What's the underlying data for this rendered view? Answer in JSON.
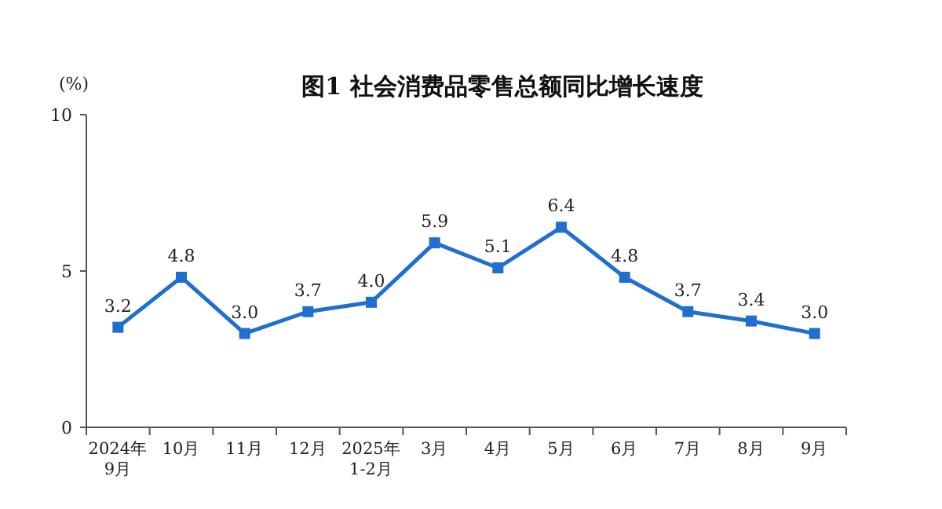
{
  "chart_data": {
    "type": "line",
    "title": "图1  社会消费品零售总额同比增长速度",
    "ylabel": "(%)",
    "categories": [
      "2024年\n9月",
      "10月",
      "11月",
      "12月",
      "2025年\n1-2月",
      "3月",
      "4月",
      "5月",
      "6月",
      "7月",
      "8月",
      "9月"
    ],
    "series": [
      {
        "color": "#1f6fd0",
        "values": [
          3.2,
          4.8,
          3.0,
          3.7,
          4.0,
          5.9,
          5.1,
          6.4,
          4.8,
          3.7,
          3.4,
          3.0
        ],
        "value_labels": [
          "3.2",
          "4.8",
          "3.0",
          "3.7",
          "4.0",
          "5.9",
          "5.1",
          "6.4",
          "4.8",
          "3.7",
          "3.4",
          "3.0"
        ]
      }
    ],
    "ylim": [
      0,
      10
    ],
    "yticks": [
      0,
      5,
      10
    ],
    "marker": "square",
    "line_style": "solid"
  }
}
